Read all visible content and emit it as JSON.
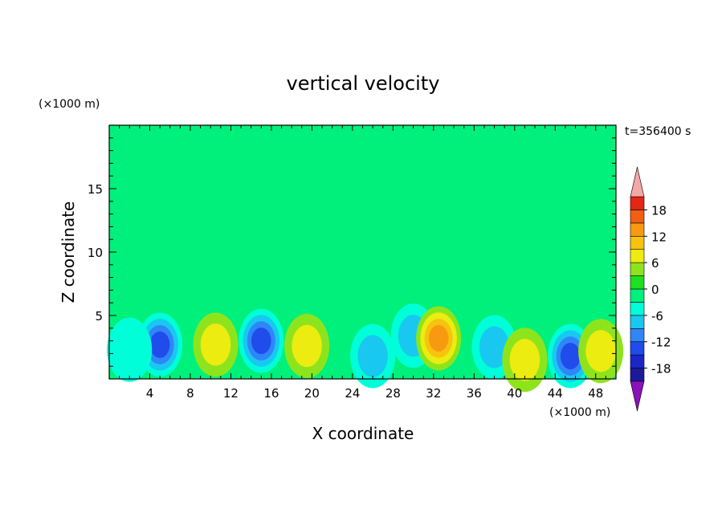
{
  "chart_data": {
    "type": "heatmap",
    "title": "vertical velocity",
    "xlabel": "X coordinate",
    "ylabel": "Z coordinate",
    "x_unit": "(×1000 m)",
    "y_unit": "(×1000 m)",
    "time_label": "t=356400 s",
    "xlim": [
      0,
      50
    ],
    "ylim": [
      0,
      20
    ],
    "x_ticks": [
      "4",
      "8",
      "12",
      "16",
      "20",
      "24",
      "28",
      "32",
      "36",
      "40",
      "44",
      "48"
    ],
    "y_ticks": [
      "5",
      "10",
      "15"
    ],
    "colorbar": {
      "levels": [
        -21,
        -18,
        -15,
        -12,
        -9,
        -6,
        -3,
        0,
        3,
        6,
        9,
        12,
        15,
        18,
        21
      ],
      "tick_labels": [
        "18",
        "12",
        "6",
        "0",
        "-6",
        "-12",
        "-18"
      ],
      "colors": [
        "#8a12b8",
        "#1a1a9a",
        "#1c26c8",
        "#1f4cea",
        "#2f86f8",
        "#19c8f0",
        "#00ffd8",
        "#00f07c",
        "#1ee01e",
        "#8ee41c",
        "#ecec10",
        "#f6c40e",
        "#f89a10",
        "#f45e12",
        "#e42614",
        "#ee2a26",
        "#f4a7a7"
      ],
      "over_color": "#f4a7a7",
      "under_color": "#8a12b8"
    },
    "features": [
      {
        "x": 5,
        "z": 2.7,
        "w": -13
      },
      {
        "x": 10.5,
        "z": 2.7,
        "w": 7
      },
      {
        "x": 15,
        "z": 3.0,
        "w": -13
      },
      {
        "x": 19.5,
        "z": 2.6,
        "w": 8
      },
      {
        "x": 26,
        "z": 1.8,
        "w": -8
      },
      {
        "x": 30,
        "z": 3.4,
        "w": -7
      },
      {
        "x": 32.5,
        "z": 3.2,
        "w": 12
      },
      {
        "x": 38,
        "z": 2.5,
        "w": -7
      },
      {
        "x": 41,
        "z": 1.5,
        "w": 6
      },
      {
        "x": 45.5,
        "z": 1.8,
        "w": -13
      },
      {
        "x": 48.5,
        "z": 2.2,
        "w": 7
      },
      {
        "x": 2,
        "z": 2.3,
        "w": -5
      }
    ]
  }
}
